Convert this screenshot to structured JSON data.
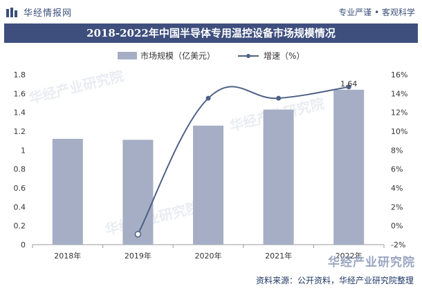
{
  "header": {
    "brand": "华经情报网",
    "slogan": "专业严谨 • 客观科学",
    "title": "2018-2022年中国半导体专用温控设备市场规模情况"
  },
  "colors": {
    "bar": "#a5aec4",
    "line": "#4e6085",
    "title_bg": "#3e4f7e"
  },
  "chart_data": {
    "type": "bar",
    "categories": [
      "2018年",
      "2019年",
      "2020年",
      "2021年",
      "2022年"
    ],
    "series": [
      {
        "name": "市场规模（亿美元）",
        "type": "bar",
        "axis": "left",
        "values": [
          1.12,
          1.11,
          1.26,
          1.43,
          1.64
        ]
      },
      {
        "name": "增速（%）",
        "type": "line",
        "axis": "right",
        "values": [
          null,
          -0.9,
          13.5,
          13.5,
          14.7
        ]
      }
    ],
    "data_labels": [
      {
        "series": 0,
        "index": 4,
        "text": "1.64"
      }
    ],
    "y_left": {
      "min": 0,
      "max": 1.8,
      "ticks": [
        "0",
        "0.2",
        "0.4",
        "0.6",
        "0.8",
        "1",
        "1.2",
        "1.4",
        "1.6",
        "1.8"
      ]
    },
    "y_right": {
      "min": -2,
      "max": 16,
      "ticks": [
        "-2%",
        "0%",
        "2%",
        "4%",
        "6%",
        "8%",
        "10%",
        "12%",
        "14%",
        "16%"
      ]
    },
    "legend_position": "top-center",
    "grid": false
  },
  "footer": {
    "source": "资料来源：公开资料，华经产业研究院整理",
    "watermark_corner": "华经产业研究院",
    "watermarks": [
      "华经产业研究院",
      "华经产业研究院",
      "华经产业研究院"
    ]
  }
}
